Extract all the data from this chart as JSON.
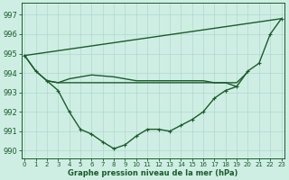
{
  "background_color": "#ceeee4",
  "grid_color": "#b0d8cc",
  "line_color": "#1a5c28",
  "marker_color": "#1a5c28",
  "xlabel": "Graphe pression niveau de la mer (hPa)",
  "ylim": [
    989.6,
    997.6
  ],
  "xlim": [
    -0.3,
    23.3
  ],
  "yticks": [
    990,
    991,
    992,
    993,
    994,
    995,
    996,
    997
  ],
  "xticks": [
    0,
    1,
    2,
    3,
    4,
    5,
    6,
    7,
    8,
    9,
    10,
    11,
    12,
    13,
    14,
    15,
    16,
    17,
    18,
    19,
    20,
    21,
    22,
    23
  ],
  "series": [
    {
      "x": [
        0,
        23
      ],
      "y": [
        994.9,
        996.8
      ],
      "marker": false,
      "lw": 1.0
    },
    {
      "x": [
        0,
        1,
        2,
        3,
        4,
        5,
        6,
        7,
        8,
        9,
        10,
        11,
        12,
        13,
        14,
        15,
        16,
        17,
        18,
        19
      ],
      "y": [
        994.9,
        994.1,
        993.6,
        993.5,
        993.5,
        993.5,
        993.5,
        993.5,
        993.5,
        993.5,
        993.5,
        993.5,
        993.5,
        993.5,
        993.5,
        993.5,
        993.5,
        993.5,
        993.5,
        993.3
      ],
      "marker": false,
      "lw": 1.0
    },
    {
      "x": [
        0,
        1,
        2,
        3,
        4,
        5,
        6,
        7,
        8,
        9,
        10,
        11,
        12,
        13,
        14,
        15,
        16,
        17,
        18,
        19,
        20,
        21,
        22,
        23
      ],
      "y": [
        994.9,
        994.1,
        993.6,
        993.1,
        992.0,
        991.1,
        990.85,
        990.45,
        990.1,
        990.3,
        990.75,
        991.1,
        991.1,
        991.0,
        991.3,
        991.6,
        992.0,
        992.7,
        993.1,
        993.3,
        994.1,
        994.5,
        996.0,
        996.8
      ],
      "marker": true,
      "lw": 1.0
    },
    {
      "x": [
        2,
        3,
        4,
        5,
        6,
        7,
        8,
        9,
        10,
        11,
        12,
        13,
        14,
        15,
        16,
        17,
        18,
        19,
        20
      ],
      "y": [
        993.6,
        993.5,
        993.7,
        993.8,
        993.9,
        993.85,
        993.8,
        993.7,
        993.6,
        993.6,
        993.6,
        993.6,
        993.6,
        993.6,
        993.6,
        993.5,
        993.5,
        993.5,
        994.05
      ],
      "marker": false,
      "lw": 1.0
    }
  ]
}
